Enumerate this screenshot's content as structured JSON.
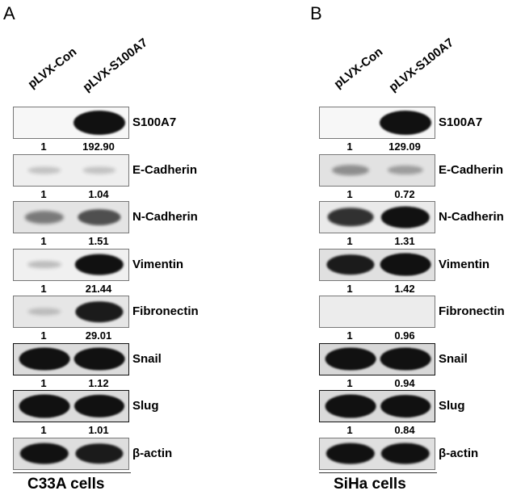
{
  "panels": [
    {
      "letter": "A",
      "lanes": [
        "pLVX-Con",
        "pLVX-S100A7"
      ],
      "cell_label": "C33A cells",
      "rows": [
        {
          "protein": "S100A7",
          "q1": "1",
          "q2": "192.90",
          "bg": "#f7f7f7",
          "b1": 0.0,
          "b2": 1.0,
          "frame": "light"
        },
        {
          "protein": "E-Cadherin",
          "q1": "1",
          "q2": "1.04",
          "bg": "#efefef",
          "b1": 0.05,
          "b2": 0.05,
          "frame": "light"
        },
        {
          "protein": "N-Cadherin",
          "q1": "1",
          "q2": "1.51",
          "bg": "#e4e4e4",
          "b1": 0.35,
          "b2": 0.55,
          "frame": "light"
        },
        {
          "protein": "Vimentin",
          "q1": "1",
          "q2": "21.44",
          "bg": "#f0f0f0",
          "b1": 0.08,
          "b2": 0.85,
          "frame": "light"
        },
        {
          "protein": "Fibronectin",
          "q1": "1",
          "q2": "29.01",
          "bg": "#e6e6e6",
          "b1": 0.05,
          "b2": 0.8,
          "frame": "light"
        },
        {
          "protein": "Snail",
          "q1": "1",
          "q2": "1.12",
          "bg": "#dcdcdc",
          "b1": 0.95,
          "b2": 0.95,
          "frame": "dark"
        },
        {
          "protein": "Slug",
          "q1": "1",
          "q2": "1.01",
          "bg": "#dcdcdc",
          "b1": 0.95,
          "b2": 0.92,
          "frame": "dark"
        },
        {
          "protein": "β-actin",
          "q1": "",
          "q2": "",
          "bg": "#dedede",
          "b1": 0.85,
          "b2": 0.8,
          "frame": "light"
        }
      ]
    },
    {
      "letter": "B",
      "lanes": [
        "pLVX-Con",
        "pLVX-S100A7"
      ],
      "cell_label": "SiHa cells",
      "rows": [
        {
          "protein": "S100A7",
          "q1": "1",
          "q2": "129.09",
          "bg": "#f7f7f7",
          "b1": 0.0,
          "b2": 1.0,
          "frame": "light"
        },
        {
          "protein": "E-Cadherin",
          "q1": "1",
          "q2": "0.72",
          "bg": "#e2e2e2",
          "b1": 0.25,
          "b2": 0.18,
          "frame": "light"
        },
        {
          "protein": "N-Cadherin",
          "q1": "1",
          "q2": "1.31",
          "bg": "#eaeaea",
          "b1": 0.7,
          "b2": 0.85,
          "frame": "light"
        },
        {
          "protein": "Vimentin",
          "q1": "1",
          "q2": "1.42",
          "bg": "#e0e0e0",
          "b1": 0.8,
          "b2": 0.95,
          "frame": "light"
        },
        {
          "protein": "Fibronectin",
          "q1": "1",
          "q2": "0.96",
          "bg": "#ececec",
          "b1": 0.02,
          "b2": 0.02,
          "frame": "light"
        },
        {
          "protein": "Snail",
          "q1": "1",
          "q2": "0.94",
          "bg": "#d8d8d8",
          "b1": 0.95,
          "b2": 0.95,
          "frame": "dark"
        },
        {
          "protein": "Slug",
          "q1": "1",
          "q2": "0.84",
          "bg": "#dadada",
          "b1": 0.95,
          "b2": 0.9,
          "frame": "dark"
        },
        {
          "protein": "β-actin",
          "q1": "",
          "q2": "",
          "bg": "#e0e0e0",
          "b1": 0.85,
          "b2": 0.85,
          "frame": "light"
        }
      ]
    }
  ]
}
